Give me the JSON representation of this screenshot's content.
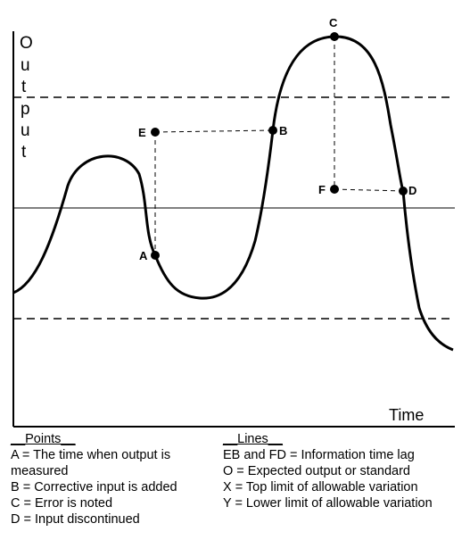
{
  "axis": {
    "y_letters": [
      "O",
      "u",
      "t",
      "p",
      "u",
      "t"
    ],
    "x_label": "Time"
  },
  "points": [
    {
      "label": "A"
    },
    {
      "label": "B"
    },
    {
      "label": "C"
    },
    {
      "label": "D"
    },
    {
      "label": "E"
    },
    {
      "label": "F"
    }
  ],
  "legend": {
    "points_title": "__Points__",
    "points": [
      "A = The time when output is measured",
      "B = Corrective input is added",
      "C = Error is noted",
      "D = Input discontinued"
    ],
    "lines_title": "__Lines__",
    "lines": [
      "EB and FD = Information time lag",
      "O = Expected output or standard",
      "X = Top limit of allowable variation",
      "Y = Lower limit of allowable variation"
    ]
  }
}
